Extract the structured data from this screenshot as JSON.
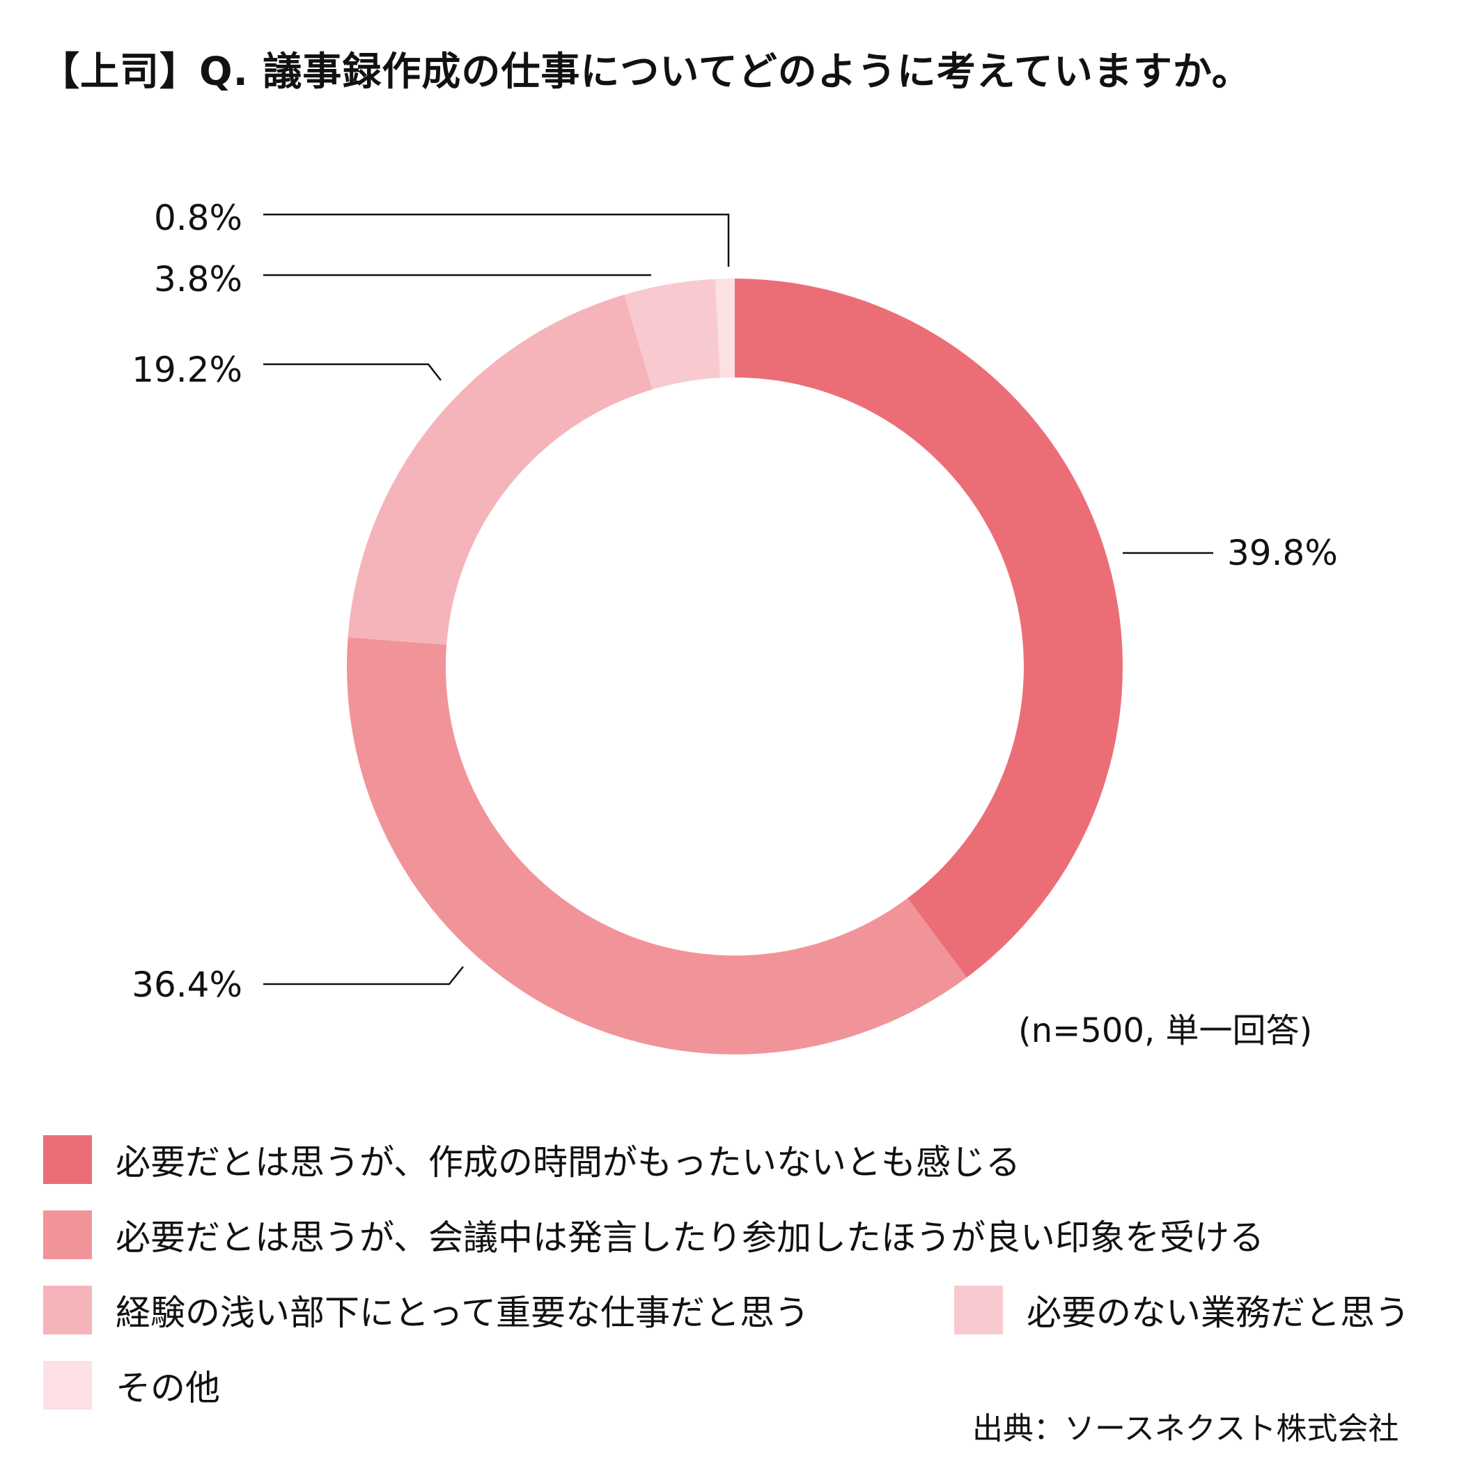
{
  "title": "【上司】Q. 議事録作成の仕事についてどのように考えていますか。",
  "note": "(n=500, 単一回答)",
  "source": "出典：ソースネクスト株式会社",
  "colors": {
    "s1": "#EB6E77",
    "s2": "#F19499",
    "s3": "#F5B4BA",
    "s4": "#F8CAD0",
    "s5": "#FCE0E4",
    "leader_line": "#111111"
  },
  "chart_data": {
    "type": "pie",
    "variant": "donut",
    "title": "【上司】Q. 議事録作成の仕事についてどのように考えていますか。",
    "start": "12 o'clock, clockwise",
    "unit": "%",
    "categories": [
      "必要だとは思うが、作成の時間がもったいないとも感じる",
      "必要だとは思うが、会議中は発言したり参加したほうが良い印象を受ける",
      "経験の浅い部下にとって重要な仕事だと思う",
      "必要のない業務だと思う",
      "その他"
    ],
    "values": [
      39.8,
      36.4,
      19.2,
      3.8,
      0.8
    ],
    "labels": [
      "39.8%",
      "36.4%",
      "19.2%",
      "3.8%",
      "0.8%"
    ],
    "legend_position": "bottom"
  },
  "legend": [
    {
      "label": "必要だとは思うが、作成の時間がもったいないとも感じる",
      "color": "#EB6E77"
    },
    {
      "label": "必要だとは思うが、会議中は発言したり参加したほうが良い印象を受ける",
      "color": "#F19499"
    },
    {
      "label": "経験の浅い部下にとって重要な仕事だと思う",
      "color": "#F5B4BA"
    },
    {
      "label": "必要のない業務だと思う",
      "color": "#F8CAD0"
    },
    {
      "label": "その他",
      "color": "#FCE0E4"
    }
  ]
}
